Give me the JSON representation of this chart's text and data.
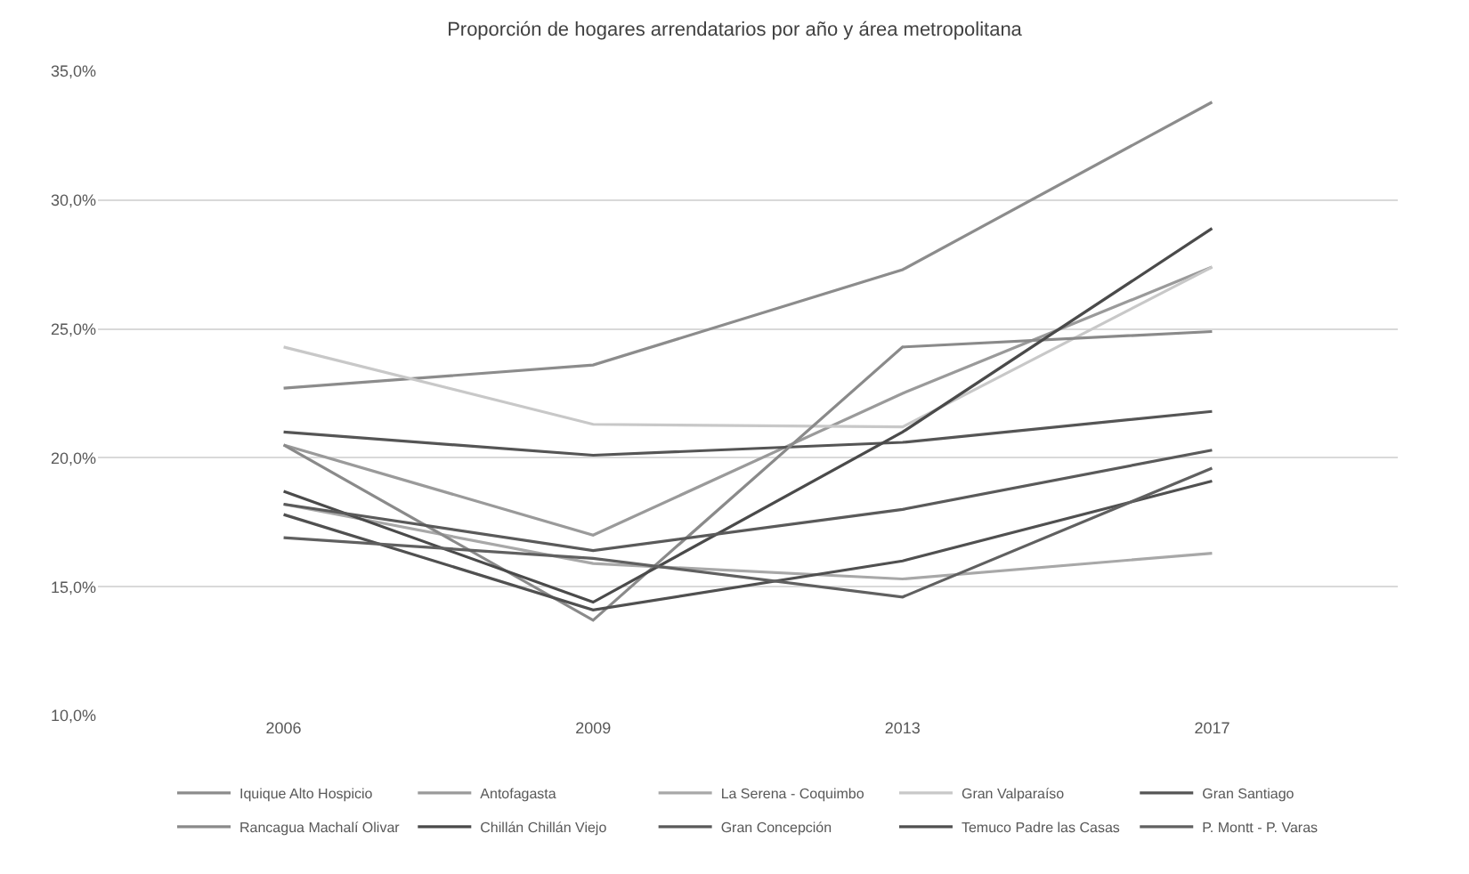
{
  "chart_data": {
    "type": "line",
    "title": "Proporción de hogares arrendatarios por año y área metropolitana",
    "categories": [
      "2006",
      "2009",
      "2013",
      "2017"
    ],
    "series": [
      {
        "name": "Iquique Alto Hospicio",
        "color": "#8c8c8c",
        "values": [
          22.7,
          23.6,
          27.3,
          33.8
        ]
      },
      {
        "name": "Antofagasta",
        "color": "#9a9a9a",
        "values": [
          20.5,
          17.0,
          22.5,
          27.4
        ]
      },
      {
        "name": "La Serena - Coquimbo",
        "color": "#a8a8a8",
        "values": [
          18.2,
          15.9,
          15.3,
          16.3
        ]
      },
      {
        "name": "Gran Valparaíso",
        "color": "#c8c8c8",
        "values": [
          24.3,
          21.3,
          21.2,
          27.4
        ]
      },
      {
        "name": "Gran Santiago",
        "color": "#555555",
        "values": [
          21.0,
          20.1,
          20.6,
          21.8
        ]
      },
      {
        "name": "Rancagua Machalí Olivar",
        "color": "#8a8a8a",
        "values": [
          20.5,
          13.7,
          24.3,
          24.9
        ]
      },
      {
        "name": "Chillán Chillán Viejo",
        "color": "#4a4a4a",
        "values": [
          18.7,
          14.4,
          21.0,
          28.9
        ]
      },
      {
        "name": "Gran Concepción",
        "color": "#5a5a5a",
        "values": [
          18.2,
          16.4,
          18.0,
          20.3
        ]
      },
      {
        "name": "Temuco Padre las Casas",
        "color": "#505050",
        "values": [
          17.8,
          14.1,
          16.0,
          19.1
        ]
      },
      {
        "name": "P. Montt - P. Varas",
        "color": "#606060",
        "values": [
          16.9,
          16.1,
          14.6,
          19.6
        ]
      }
    ],
    "ylim": [
      10,
      35
    ],
    "yticks": [
      {
        "value": 10,
        "label": "10,0%"
      },
      {
        "value": 15,
        "label": "15,0%"
      },
      {
        "value": 20,
        "label": "20,0%"
      },
      {
        "value": 25,
        "label": "25,0%"
      },
      {
        "value": 30,
        "label": "30,0%"
      },
      {
        "value": 35,
        "label": "35,0%"
      }
    ],
    "grid": "y",
    "legend": "bottom",
    "marker": "none",
    "line_style": "solid"
  }
}
